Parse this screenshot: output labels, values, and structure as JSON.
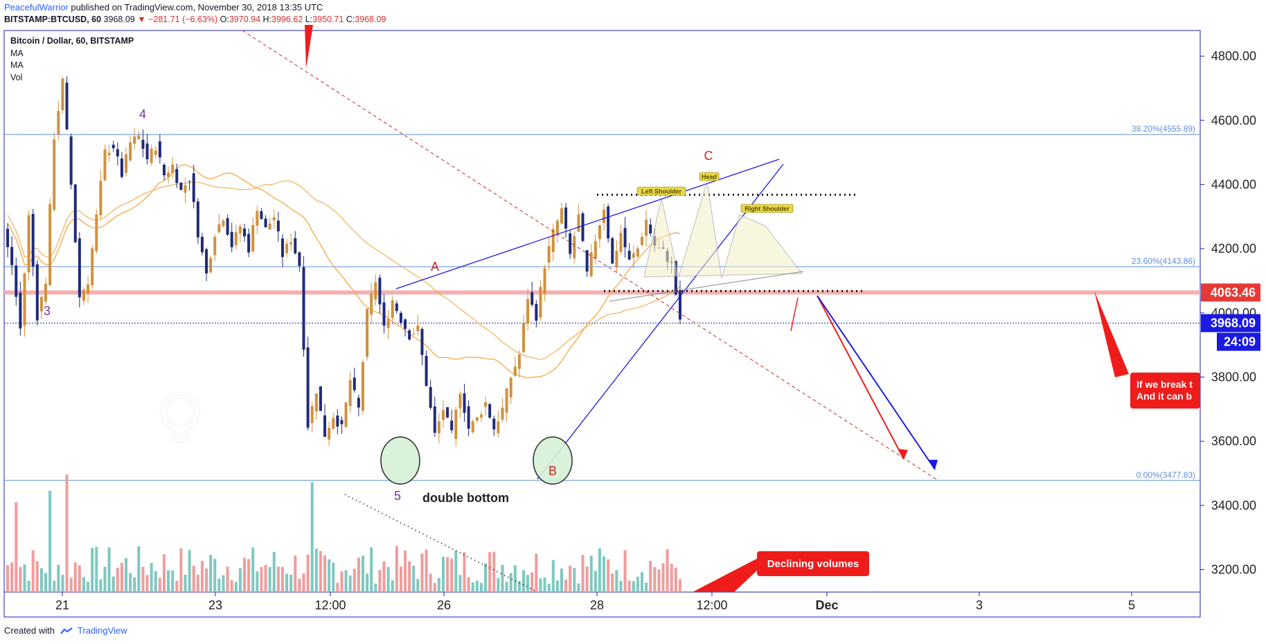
{
  "header": {
    "author": "PeacefulWarrior",
    "published_text": "published on TradingView.com, November 30, 2018 13:35 UTC",
    "symbol_line": "BITSTAMP:BTCUSD, 60",
    "last_price": "3968.09",
    "change_text": "−281.71 (−6.63%)",
    "o_label": "O:",
    "o_value": "3970.94",
    "h_label": "H:",
    "h_value": "3996.62",
    "l_label": "L:",
    "l_value": "3950.71",
    "c_label": "C:",
    "c_value": "3968.09"
  },
  "legend": {
    "title": "Bitcoin / Dollar, 60, BITSTAMP",
    "items": [
      "MA",
      "MA",
      "Vol"
    ]
  },
  "footer": {
    "created_with": "Created with",
    "brand": "TradingView"
  },
  "colors": {
    "up": "#d1913c",
    "down": "#202a7a",
    "ma": "#f5a742",
    "vol_up": "#7ec8c0",
    "vol_down": "#f19c9c",
    "axis": "#1c1cb4",
    "red": "#ef1c1c",
    "blue": "#1a1ae0"
  },
  "chart_data": {
    "type": "candlestick",
    "title": "Bitcoin / Dollar, 60, BITSTAMP",
    "ylim": [
      3130,
      4880
    ],
    "y_ticks": [
      "4800.00",
      "4600.00",
      "4400.00",
      "4200.00",
      "4000.00",
      "3800.00",
      "3600.00",
      "3400.00",
      "3200.00"
    ],
    "x_ticks": [
      "21",
      "23",
      "12:00",
      "26",
      "28",
      "12:00",
      "Dec",
      "3",
      "5"
    ],
    "price_path": [
      [
        0,
        4250
      ],
      [
        2,
        4150
      ],
      [
        4,
        3950
      ],
      [
        6,
        4300
      ],
      [
        8,
        3990
      ],
      [
        10,
        4100
      ],
      [
        12,
        4550
      ],
      [
        14,
        4720
      ],
      [
        16,
        4400
      ],
      [
        18,
        4050
      ],
      [
        20,
        4100
      ],
      [
        22,
        4300
      ],
      [
        24,
        4500
      ],
      [
        26,
        4520
      ],
      [
        28,
        4430
      ],
      [
        30,
        4530
      ],
      [
        32,
        4550
      ],
      [
        34,
        4480
      ],
      [
        36,
        4520
      ],
      [
        38,
        4430
      ],
      [
        40,
        4460
      ],
      [
        42,
        4380
      ],
      [
        44,
        4420
      ],
      [
        46,
        4250
      ],
      [
        48,
        4120
      ],
      [
        50,
        4250
      ],
      [
        52,
        4300
      ],
      [
        54,
        4210
      ],
      [
        56,
        4270
      ],
      [
        58,
        4200
      ],
      [
        60,
        4330
      ],
      [
        62,
        4260
      ],
      [
        64,
        4300
      ],
      [
        66,
        4180
      ],
      [
        68,
        4230
      ],
      [
        70,
        4150
      ],
      [
        72,
        3650
      ],
      [
        74,
        3760
      ],
      [
        76,
        3620
      ],
      [
        78,
        3680
      ],
      [
        80,
        3640
      ],
      [
        82,
        3790
      ],
      [
        84,
        3700
      ],
      [
        86,
        4000
      ],
      [
        88,
        4100
      ],
      [
        90,
        3950
      ],
      [
        92,
        4040
      ],
      [
        94,
        3980
      ],
      [
        96,
        3930
      ],
      [
        98,
        3950
      ],
      [
        100,
        3780
      ],
      [
        102,
        3620
      ],
      [
        104,
        3700
      ],
      [
        106,
        3620
      ],
      [
        108,
        3760
      ],
      [
        110,
        3640
      ],
      [
        112,
        3670
      ],
      [
        114,
        3720
      ],
      [
        116,
        3640
      ],
      [
        118,
        3700
      ],
      [
        120,
        3800
      ],
      [
        122,
        3870
      ],
      [
        124,
        4050
      ],
      [
        126,
        3990
      ],
      [
        128,
        4150
      ],
      [
        130,
        4250
      ],
      [
        132,
        4320
      ],
      [
        134,
        4180
      ],
      [
        136,
        4300
      ],
      [
        138,
        4120
      ],
      [
        140,
        4230
      ],
      [
        142,
        4330
      ],
      [
        144,
        4150
      ],
      [
        146,
        4250
      ],
      [
        148,
        4160
      ],
      [
        150,
        4200
      ],
      [
        152,
        4290
      ],
      [
        154,
        4210
      ],
      [
        156,
        4190
      ],
      [
        158,
        4150
      ],
      [
        160,
        3968
      ]
    ],
    "n_candles": 160,
    "series": [
      {
        "name": "MA",
        "type": "line"
      },
      {
        "name": "MA",
        "type": "line"
      },
      {
        "name": "Vol",
        "type": "bar"
      }
    ],
    "horizontal_levels": [
      {
        "label": "38.20%(4555.89)",
        "value": 4555.89
      },
      {
        "label": "23.60%(4143.86)",
        "value": 4143.86
      },
      {
        "label": "0.00%(3477.83)",
        "value": 3477.83
      },
      {
        "value": 4063.46
      },
      {
        "value": 4368
      },
      {
        "value": 4068
      }
    ],
    "price_tags": [
      {
        "value": "4063.46",
        "color": "#e53935"
      },
      {
        "value": "3968.09",
        "color": "#1a1ae0"
      }
    ],
    "countdown": "24:09",
    "annotations": {
      "wave_labels": [
        "3",
        "4",
        "5",
        "A",
        "B",
        "C"
      ],
      "double_bottom": "double bottom",
      "left_shoulder": "Left Shoulder",
      "head": "Head",
      "right_shoulder": "Right Shoulder",
      "declining_volumes": "Declining volumes",
      "note_line1": "If we break t",
      "note_line2": "And it can b"
    }
  }
}
